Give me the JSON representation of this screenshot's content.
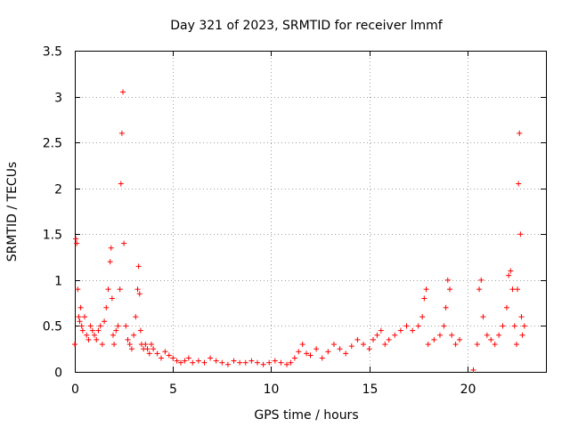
{
  "chart_data": {
    "type": "scatter",
    "title": "Day 321 of 2023, SRMTID for receiver lmmf",
    "xlabel": "GPS time / hours",
    "ylabel": "SRMTID / TECUs",
    "xlim": [
      0,
      24
    ],
    "ylim": [
      0,
      3.5
    ],
    "xticks": [
      0,
      5,
      10,
      15,
      20
    ],
    "xtick_labels": [
      "0",
      "5",
      "10",
      "15",
      "20"
    ],
    "yticks": [
      0,
      0.5,
      1,
      1.5,
      2,
      2.5,
      3,
      3.5
    ],
    "ytick_labels": [
      "0",
      "0.5",
      "1",
      "1.5",
      "2",
      "2.5",
      "3",
      "3.5"
    ],
    "grid": true,
    "marker": "+",
    "color": "#ff0000",
    "series": [
      {
        "name": "SRMTID",
        "x": [
          0.0,
          0.05,
          0.1,
          0.15,
          0.2,
          0.25,
          0.3,
          0.35,
          0.4,
          0.5,
          0.6,
          0.7,
          0.8,
          0.9,
          1.0,
          1.1,
          1.2,
          1.3,
          1.4,
          1.5,
          1.6,
          1.7,
          1.8,
          1.85,
          1.9,
          1.95,
          2.0,
          2.1,
          2.2,
          2.3,
          2.35,
          2.4,
          2.45,
          2.5,
          2.6,
          2.7,
          2.8,
          2.9,
          3.0,
          3.1,
          3.2,
          3.25,
          3.3,
          3.35,
          3.4,
          3.5,
          3.6,
          3.7,
          3.8,
          3.9,
          4.0,
          4.2,
          4.4,
          4.6,
          4.8,
          5.0,
          5.2,
          5.4,
          5.6,
          5.8,
          6.0,
          6.3,
          6.6,
          6.9,
          7.2,
          7.5,
          7.8,
          8.1,
          8.4,
          8.7,
          9.0,
          9.3,
          9.6,
          9.9,
          10.2,
          10.5,
          10.8,
          11.0,
          11.2,
          11.4,
          11.6,
          11.8,
          12.0,
          12.3,
          12.6,
          12.9,
          13.2,
          13.5,
          13.8,
          14.1,
          14.4,
          14.7,
          15.0,
          15.2,
          15.4,
          15.6,
          15.8,
          16.0,
          16.3,
          16.6,
          16.9,
          17.2,
          17.5,
          17.7,
          17.8,
          17.9,
          18.0,
          18.3,
          18.6,
          18.8,
          18.9,
          19.0,
          19.1,
          19.2,
          19.4,
          19.6,
          20.3,
          20.5,
          20.6,
          20.7,
          20.8,
          21.0,
          21.2,
          21.4,
          21.6,
          21.8,
          22.0,
          22.1,
          22.2,
          22.3,
          22.4,
          22.5,
          22.55,
          22.6,
          22.65,
          22.7,
          22.75,
          22.8,
          22.9
        ],
        "y": [
          0.3,
          1.45,
          1.4,
          0.9,
          0.6,
          0.55,
          0.7,
          0.5,
          0.45,
          0.6,
          0.4,
          0.35,
          0.5,
          0.45,
          0.4,
          0.35,
          0.45,
          0.5,
          0.3,
          0.55,
          0.7,
          0.9,
          1.2,
          1.35,
          0.8,
          0.4,
          0.3,
          0.45,
          0.5,
          0.9,
          2.05,
          2.6,
          3.05,
          1.4,
          0.5,
          0.35,
          0.3,
          0.25,
          0.4,
          0.6,
          0.9,
          1.15,
          0.85,
          0.45,
          0.3,
          0.25,
          0.3,
          0.25,
          0.2,
          0.3,
          0.25,
          0.2,
          0.15,
          0.22,
          0.18,
          0.15,
          0.12,
          0.1,
          0.12,
          0.15,
          0.1,
          0.12,
          0.1,
          0.15,
          0.12,
          0.1,
          0.08,
          0.12,
          0.1,
          0.1,
          0.12,
          0.1,
          0.08,
          0.1,
          0.12,
          0.1,
          0.08,
          0.1,
          0.15,
          0.22,
          0.3,
          0.2,
          0.18,
          0.25,
          0.15,
          0.22,
          0.3,
          0.25,
          0.2,
          0.28,
          0.35,
          0.3,
          0.25,
          0.35,
          0.4,
          0.45,
          0.3,
          0.35,
          0.4,
          0.45,
          0.5,
          0.45,
          0.5,
          0.6,
          0.8,
          0.9,
          0.3,
          0.35,
          0.4,
          0.5,
          0.7,
          1.0,
          0.9,
          0.4,
          0.3,
          0.35,
          0.02,
          0.3,
          0.9,
          1.0,
          0.6,
          0.4,
          0.35,
          0.3,
          0.4,
          0.5,
          0.7,
          1.05,
          1.1,
          0.9,
          0.5,
          0.3,
          0.9,
          2.05,
          2.6,
          1.5,
          0.6,
          0.4,
          0.5
        ]
      }
    ]
  }
}
